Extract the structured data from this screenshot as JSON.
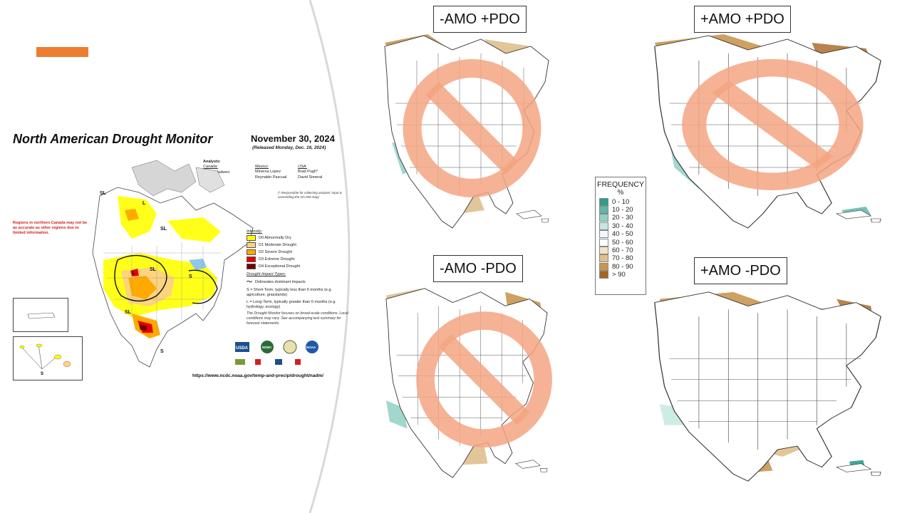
{
  "accent_color": "#ed7d31",
  "drought_monitor": {
    "title": "North American Drought Monitor",
    "date": "November 30, 2024",
    "released": "(Released Monday, Dec. 16, 2024)",
    "analysts_header": "Analysts:",
    "canada_label": "Canada:",
    "canada_names": "Trevor Hadwen",
    "mexico_label": "Mexico:",
    "mexico_names": [
      "Minerva Lopez",
      "Reynaldo Pascual"
    ],
    "usa_label": "USA:",
    "usa_names": [
      "Brad Pugh*",
      "David Simeral"
    ],
    "responsible_note": "(* Responsible for collecting analysts' input & assembling the NA-DM map)",
    "northern_canada_note": "Regions in northern Canada may not be as accurate as other regions due to limited information.",
    "intensity_title": "Intensity:",
    "intensity": [
      {
        "label": "D0 Abnormally Dry",
        "color": "#ffff00"
      },
      {
        "label": "D1 Moderate Drought",
        "color": "#fcd37f"
      },
      {
        "label": "D2 Severe Drought",
        "color": "#ffaa00"
      },
      {
        "label": "D3 Extreme Drought",
        "color": "#e60000"
      },
      {
        "label": "D4 Exceptional Drought",
        "color": "#730000"
      }
    ],
    "impact_title": "Drought Impact Types:",
    "impact_delineates": "Delineates dominant impacts",
    "impact_short": "S = Short-Term, typically less than 6 months (e.g. agriculture, grasslands)",
    "impact_long": "L = Long-Term, typically greater than 6 months (e.g. hydrology, ecology)",
    "monitor_note": "The Drought Monitor focuses on broad-scale conditions. Local conditions may vary. See accompanying text summary for forecast statements.",
    "url": "https://www.ncdc.noaa.gov/temp-and-precip/drought/nadm/",
    "map_labels": {
      "short": "S",
      "long": "L",
      "short_long": "SL"
    },
    "agency_logos": [
      "USDA",
      "NDMC",
      "NOAA"
    ]
  },
  "panels": [
    {
      "label": "-AMO +PDO",
      "crossed_out": true
    },
    {
      "label": "+AMO +PDO",
      "crossed_out": true
    },
    {
      "label": "-AMO -PDO",
      "crossed_out": true
    },
    {
      "label": "+AMO -PDO",
      "crossed_out": false
    }
  ],
  "frequency_legend": {
    "title": "FREQUENCY",
    "unit": "%",
    "bins": [
      {
        "label": "0 - 10",
        "color": "#2e9d8e"
      },
      {
        "label": "10 - 20",
        "color": "#5db8aa"
      },
      {
        "label": "20 - 30",
        "color": "#92d0c5"
      },
      {
        "label": "30 - 40",
        "color": "#c7e7e1"
      },
      {
        "label": "40 - 50",
        "color": "#f2f9f8"
      },
      {
        "label": "50 - 60",
        "color": "#ffffff"
      },
      {
        "label": "60 - 70",
        "color": "#f1e3c8"
      },
      {
        "label": "70 - 80",
        "color": "#dfc08e"
      },
      {
        "label": "80 - 90",
        "color": "#c99650"
      },
      {
        "label": "> 90",
        "color": "#a8641e"
      }
    ]
  },
  "no_symbol_color": "#f4a582"
}
